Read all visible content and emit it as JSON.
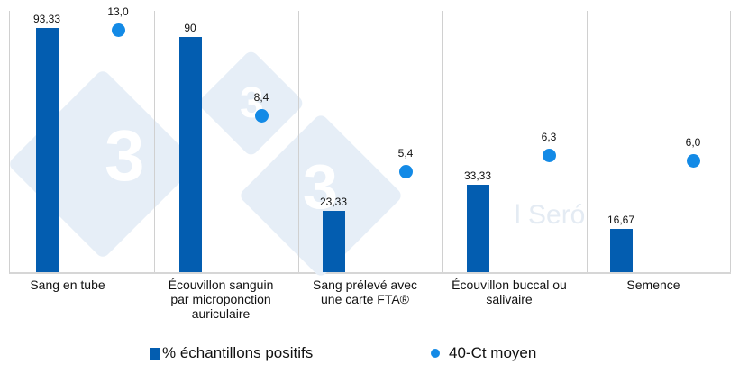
{
  "chart_data": {
    "type": "bar",
    "title": "",
    "categories": [
      "Sang en tube",
      "Écouvillon sanguin par microponction auriculaire",
      "Sang prélevé avec une carte FTA®",
      "Écouvillon buccal ou salivaire",
      "Semence"
    ],
    "series": [
      {
        "name": "% échantillons positifs",
        "type": "bar",
        "color": "#035db0",
        "values": [
          93.33,
          90,
          23.33,
          33.33,
          16.67
        ],
        "labels": [
          "93,33",
          "90",
          "23,33",
          "33,33",
          "16,67"
        ]
      },
      {
        "name": "40-Ct moyen",
        "type": "scatter",
        "color": "#138ae6",
        "values": [
          13.0,
          8.4,
          5.4,
          6.3,
          6.0
        ],
        "labels": [
          "13,0",
          "8,4",
          "5,4",
          "6,3",
          "6,0"
        ]
      }
    ],
    "xlabel": "",
    "ylabel": "",
    "ylim": [
      0,
      100
    ],
    "grid": "vertical category separators",
    "legend_position": "bottom"
  },
  "categories_display": [
    [
      "Sang en tube"
    ],
    [
      "Écouvillon sanguin",
      "par microponction",
      "auriculaire"
    ],
    [
      "Sang prélevé avec",
      "une carte FTA®"
    ],
    [
      "Écouvillon buccal ou",
      "salivaire"
    ],
    [
      "Semence"
    ]
  ],
  "legend": {
    "bar_label": "% échantillons positifs",
    "dot_label": "40-Ct moyen"
  },
  "watermark": {
    "text": "l Seró",
    "digit": "3"
  }
}
